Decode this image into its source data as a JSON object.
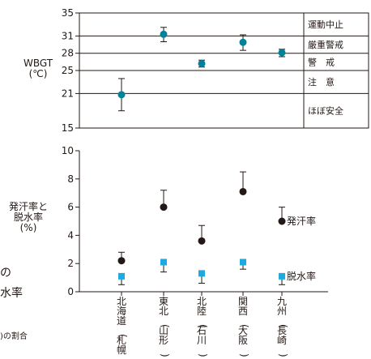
{
  "left_text": {
    "wbgt_label": "WBGT",
    "wbgt_unit": "(℃)",
    "sweat_label_l1": "発汗率と",
    "sweat_label_l2": "脱水率",
    "sweat_label_l3": "(%)",
    "cut_1": "の",
    "cut_2": "水率",
    "cut_3": ")の割合"
  },
  "chart_data": [
    {
      "type": "scatter",
      "ylabel": "WBGT (℃)",
      "y_ticks": [
        15,
        21,
        25,
        28,
        31,
        35
      ],
      "y_gridlines": [
        21,
        25,
        28,
        31
      ],
      "ylim": [
        15,
        35
      ],
      "zones": [
        {
          "label": "運動中止",
          "from": 31,
          "to": 35
        },
        {
          "label": "厳重警戒",
          "from": 28,
          "to": 31
        },
        {
          "label": "警　戒",
          "from": 25,
          "to": 28
        },
        {
          "label": "注　意",
          "from": 21,
          "to": 25
        },
        {
          "label": "ほぼ安全",
          "from": 15,
          "to": 21
        }
      ],
      "categories": [
        "北海道(札幌)",
        "東北(山形)",
        "北陸(石川)",
        "関西(大阪)",
        "九州(長崎)"
      ],
      "series": [
        {
          "values": [
            20.8,
            31.3,
            26.2,
            29.9,
            28.1
          ],
          "err_low": [
            18.0,
            30.0,
            25.6,
            28.5,
            27.4
          ],
          "err_high": [
            23.6,
            32.5,
            26.8,
            31.2,
            28.7
          ],
          "color": "#00839a"
        }
      ]
    },
    {
      "type": "scatter",
      "ylabel": "発汗率と脱水率 (%)",
      "y_ticks": [
        0,
        2,
        4,
        6,
        8,
        10
      ],
      "ylim": [
        0,
        10
      ],
      "categories": [
        "北海道(札幌)",
        "東北(山形)",
        "北陸(石川)",
        "関西(大阪)",
        "九州(長崎)"
      ],
      "series": [
        {
          "name": "発汗率",
          "marker": "circle",
          "color": "#231815",
          "values": [
            2.2,
            6.0,
            3.6,
            7.1,
            5.0
          ],
          "err_high": [
            2.8,
            7.2,
            4.7,
            8.5,
            6.0
          ]
        },
        {
          "name": "脱水率",
          "marker": "square",
          "color": "#1fa9e1",
          "values": [
            1.1,
            2.1,
            1.3,
            2.1,
            1.1
          ],
          "err_low": [
            0.5,
            1.4,
            0.6,
            1.6,
            0.5
          ]
        }
      ]
    }
  ]
}
